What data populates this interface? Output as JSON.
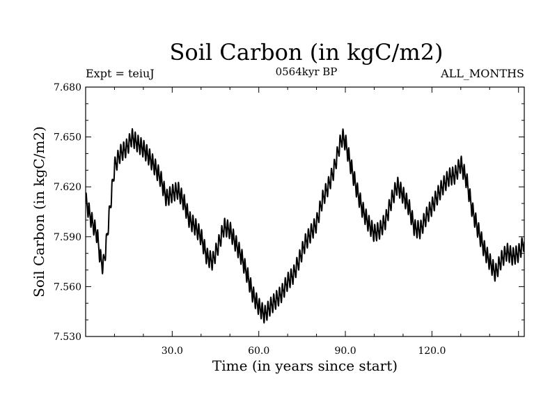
{
  "chart_data": {
    "type": "line",
    "title": "Soil Carbon (in kgC/m2)",
    "subtitle": "0564kyr BP",
    "left_annotation": "Expt = teiuJ",
    "right_annotation": "ALL_MONTHS",
    "xlabel": "Time (in years since start)",
    "ylabel": "Soil Carbon (in kgC/m2)",
    "xlim": [
      0,
      152
    ],
    "ylim": [
      7.53,
      7.68
    ],
    "xticks": [
      30,
      60,
      90,
      120
    ],
    "xtick_labels": [
      "30.0",
      "60.0",
      "90.0",
      "120.0"
    ],
    "yticks": [
      7.53,
      7.56,
      7.59,
      7.62,
      7.65,
      7.68
    ],
    "ytick_labels": [
      "7.530",
      "7.560",
      "7.590",
      "7.620",
      "7.650",
      "7.680"
    ],
    "grid": false,
    "series": [
      {
        "name": "Soil Carbon",
        "seasonal_amplitude": 0.0045,
        "trend_x": [
          0,
          2,
          4,
          5,
          6,
          7,
          8,
          10,
          12,
          14,
          15,
          16,
          18,
          20,
          22,
          24,
          26,
          28,
          30,
          32,
          34,
          36,
          38,
          40,
          42,
          44,
          46,
          48,
          50,
          52,
          54,
          56,
          58,
          60,
          62,
          64,
          66,
          68,
          70,
          72,
          74,
          76,
          78,
          80,
          82,
          84,
          86,
          88,
          89,
          90,
          92,
          94,
          96,
          98,
          100,
          102,
          104,
          106,
          108,
          110,
          112,
          114,
          116,
          118,
          120,
          122,
          124,
          126,
          128,
          130,
          132,
          134,
          136,
          138,
          140,
          142,
          144,
          146,
          148,
          150,
          152
        ],
        "trend_y": [
          7.612,
          7.6,
          7.591,
          7.578,
          7.572,
          7.583,
          7.6,
          7.632,
          7.64,
          7.643,
          7.646,
          7.65,
          7.646,
          7.643,
          7.638,
          7.632,
          7.625,
          7.613,
          7.616,
          7.618,
          7.611,
          7.6,
          7.596,
          7.59,
          7.578,
          7.575,
          7.585,
          7.596,
          7.594,
          7.586,
          7.578,
          7.567,
          7.555,
          7.548,
          7.543,
          7.548,
          7.552,
          7.556,
          7.563,
          7.567,
          7.576,
          7.586,
          7.592,
          7.598,
          7.612,
          7.62,
          7.63,
          7.645,
          7.65,
          7.647,
          7.632,
          7.618,
          7.606,
          7.598,
          7.592,
          7.594,
          7.6,
          7.612,
          7.621,
          7.615,
          7.608,
          7.595,
          7.594,
          7.602,
          7.608,
          7.615,
          7.621,
          7.626,
          7.627,
          7.634,
          7.624,
          7.606,
          7.594,
          7.583,
          7.575,
          7.568,
          7.576,
          7.581,
          7.578,
          7.58,
          7.587
        ]
      }
    ]
  }
}
